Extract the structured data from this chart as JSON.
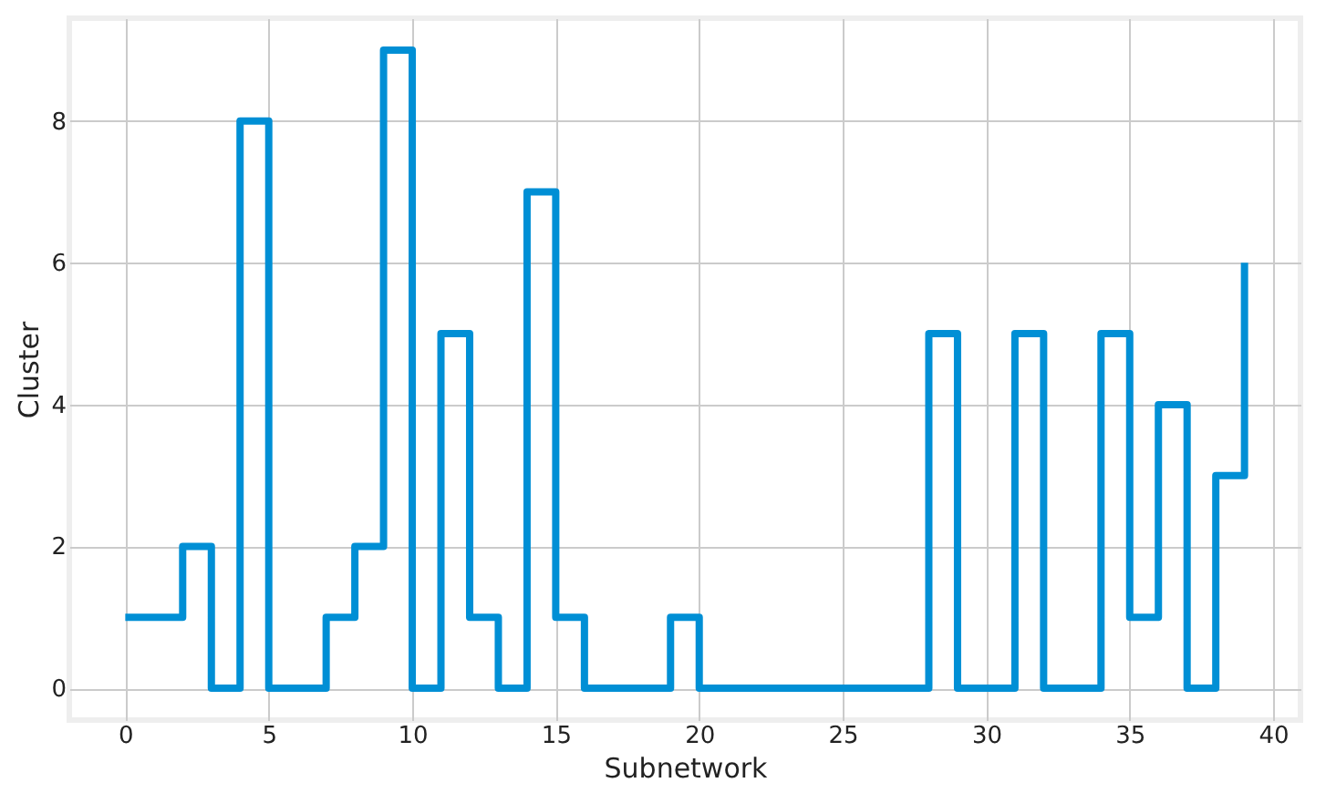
{
  "chart_data": {
    "type": "step",
    "xlabel": "Subnetwork",
    "ylabel": "Cluster",
    "x": [
      0,
      1,
      2,
      3,
      4,
      5,
      6,
      7,
      8,
      9,
      10,
      11,
      12,
      13,
      14,
      15,
      16,
      17,
      18,
      19,
      20,
      21,
      22,
      23,
      24,
      25,
      26,
      27,
      28,
      29,
      30,
      31,
      32,
      33,
      34,
      35,
      36,
      37,
      38,
      39
    ],
    "series": [
      {
        "color": "#008fd5",
        "values": [
          1,
          1,
          2,
          0,
          8,
          0,
          0,
          1,
          2,
          9,
          0,
          5,
          1,
          0,
          7,
          1,
          0,
          0,
          0,
          1,
          0,
          0,
          0,
          0,
          0,
          0,
          0,
          0,
          5,
          0,
          0,
          5,
          0,
          0,
          5,
          1,
          4,
          0,
          3,
          6
        ]
      }
    ],
    "xlim": [
      -1.95,
      40.95
    ],
    "ylim": [
      -0.45,
      9.45
    ],
    "xticks": [
      0,
      5,
      10,
      15,
      20,
      25,
      30,
      35,
      40
    ],
    "yticks": [
      0,
      2,
      4,
      6,
      8
    ],
    "grid": true
  }
}
